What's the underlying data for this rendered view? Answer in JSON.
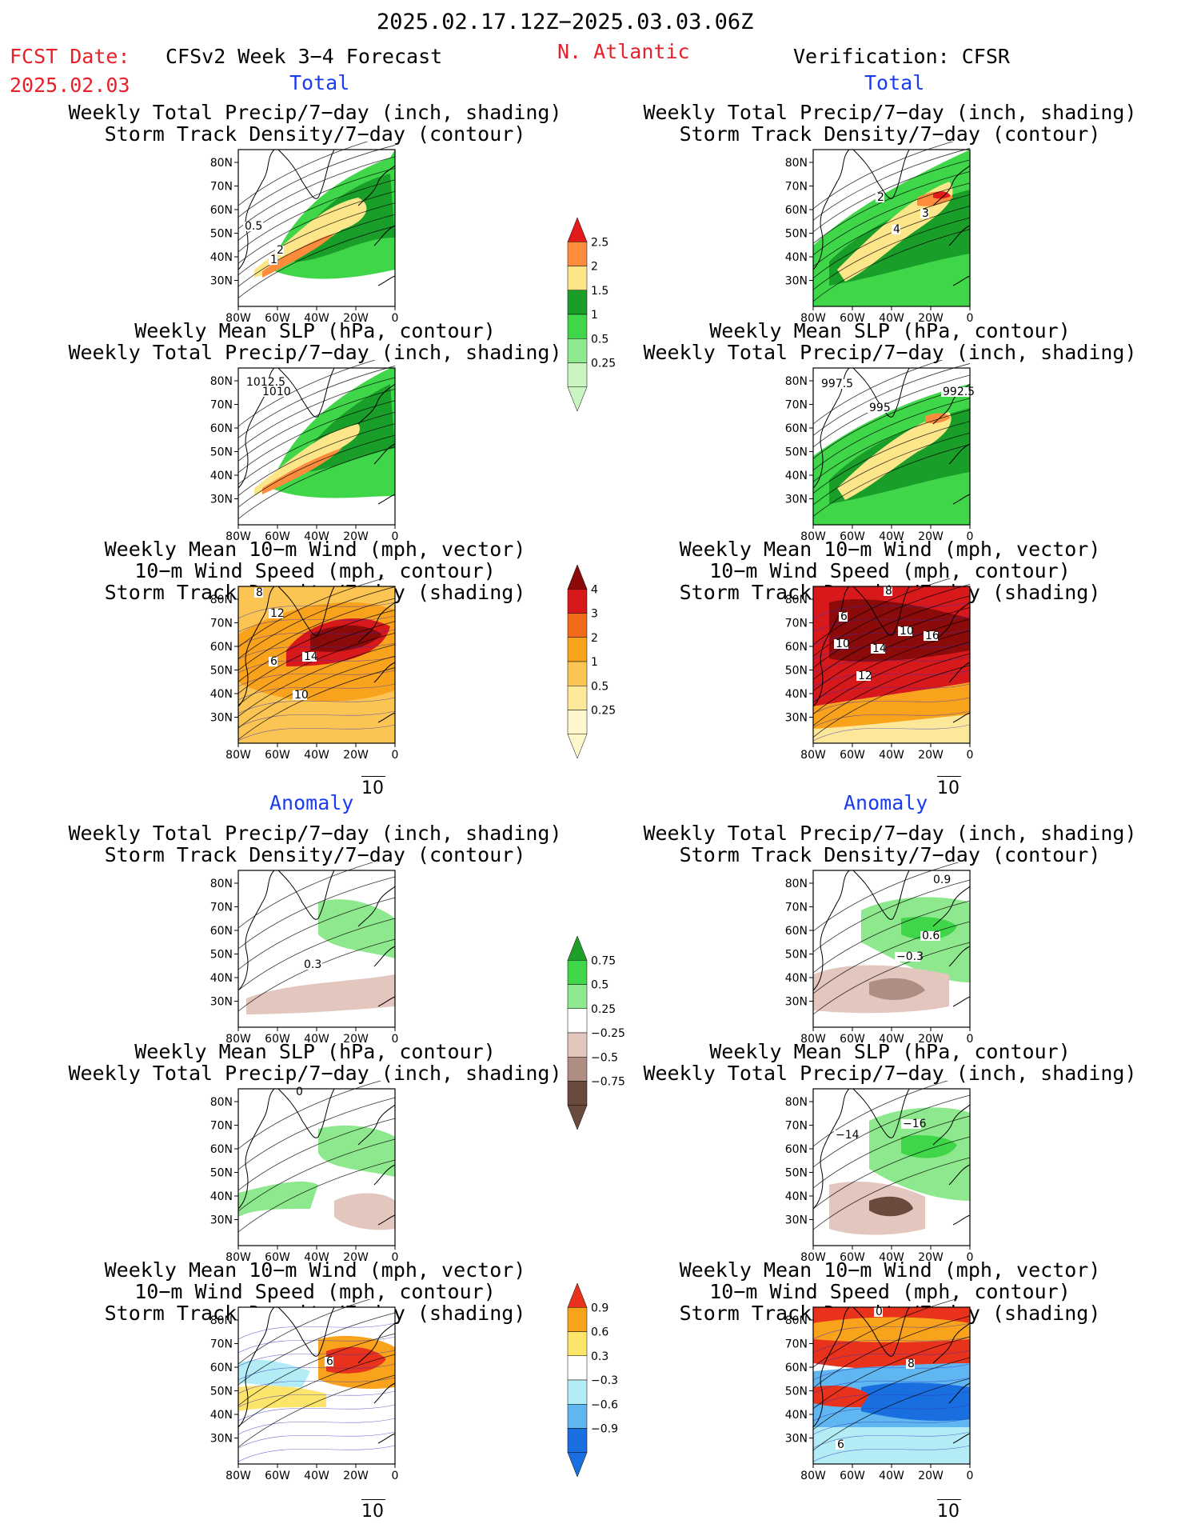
{
  "header": {
    "date_range": "2025.02.17.12Z−2025.03.03.06Z",
    "fcst_label": "FCST Date:",
    "fcst_date": "2025.02.03",
    "model": "CFSv2 Week 3−4 Forecast",
    "region": "N. Atlantic",
    "verification": "Verification: CFSR"
  },
  "sections": {
    "total": "Total",
    "anomaly": "Anomaly"
  },
  "panel_titles": {
    "precip_storm": [
      "Weekly Total Precip/7−day (inch, shading)",
      "Storm Track Density/7−day (contour)"
    ],
    "slp_precip": [
      "Weekly Mean SLP (hPa, contour)",
      "Weekly Total Precip/7−day (inch, shading)"
    ],
    "wind_storm": [
      "Weekly Mean 10−m Wind (mph, vector)",
      "10−m Wind Speed (mph, contour)",
      "Storm Track Density/7−day (shading)"
    ]
  },
  "axes": {
    "lat_ticks": [
      "80N",
      "70N",
      "60N",
      "50N",
      "40N",
      "30N"
    ],
    "lon_ticks": [
      "80W",
      "60W",
      "40W",
      "20W",
      "0"
    ]
  },
  "vector_ref": "10",
  "panels": [
    {
      "id": "fcst-total-precip",
      "labels": [
        "0.5",
        "2",
        "1"
      ]
    },
    {
      "id": "fcst-total-slp",
      "labels": [
        "1012.5",
        "1010"
      ]
    },
    {
      "id": "fcst-total-wind",
      "labels": [
        "12",
        "14",
        "6",
        "10",
        "8"
      ]
    },
    {
      "id": "fcst-anom-precip",
      "labels": [
        "0.3"
      ]
    },
    {
      "id": "fcst-anom-slp",
      "labels": [
        "0"
      ]
    },
    {
      "id": "fcst-anom-wind",
      "labels": [
        "6"
      ]
    },
    {
      "id": "ver-total-precip",
      "labels": [
        "2",
        "3",
        "4"
      ]
    },
    {
      "id": "ver-total-slp",
      "labels": [
        "997.5",
        "995",
        "992.5"
      ]
    },
    {
      "id": "ver-total-wind",
      "labels": [
        "6",
        "10",
        "16",
        "10",
        "14",
        "12",
        "8"
      ]
    },
    {
      "id": "ver-anom-precip",
      "labels": [
        "0.9",
        "0.6",
        "−0.3"
      ]
    },
    {
      "id": "ver-anom-slp",
      "labels": [
        "−16",
        "−14"
      ]
    },
    {
      "id": "ver-anom-wind",
      "labels": [
        "0",
        "8",
        "6"
      ]
    }
  ],
  "colorbars": [
    {
      "id": "precip-total",
      "labels": [
        "2.5",
        "2",
        "1.5",
        "1",
        "0.5",
        "0.25"
      ],
      "colors": [
        "#e31a1c",
        "#fd8d3c",
        "#fde68a",
        "#1a9e2a",
        "#3fd64a",
        "#8ee98e",
        "#c8f5c0"
      ]
    },
    {
      "id": "storm-total",
      "labels": [
        "4",
        "3",
        "2",
        "1",
        "0.5",
        "0.25"
      ],
      "colors": [
        "#8b0a0a",
        "#d7191c",
        "#f06a1a",
        "#f9a21c",
        "#fbc453",
        "#fde89a",
        "#fff7cc"
      ]
    },
    {
      "id": "precip-anom",
      "labels": [
        "0.75",
        "0.5",
        "0.25",
        "−0.25",
        "−0.5",
        "−0.75"
      ],
      "colors": [
        "#1f9e2a",
        "#3fd64a",
        "#8ee98e",
        "#ffffff",
        "#e3c6bd",
        "#b08d82",
        "#6b4a3e"
      ]
    },
    {
      "id": "storm-anom",
      "labels": [
        "0.9",
        "0.6",
        "0.3",
        "−0.3",
        "−0.6",
        "−0.9"
      ],
      "colors": [
        "#e8321c",
        "#f9a21c",
        "#fde46a",
        "#ffffff",
        "#b4ecf5",
        "#5fb6f0",
        "#1a6fe0"
      ]
    }
  ],
  "colors": {
    "title_red": "#e8202a",
    "title_blue": "#1a3cf0",
    "land": "#ffffff",
    "coast": "#000000"
  }
}
